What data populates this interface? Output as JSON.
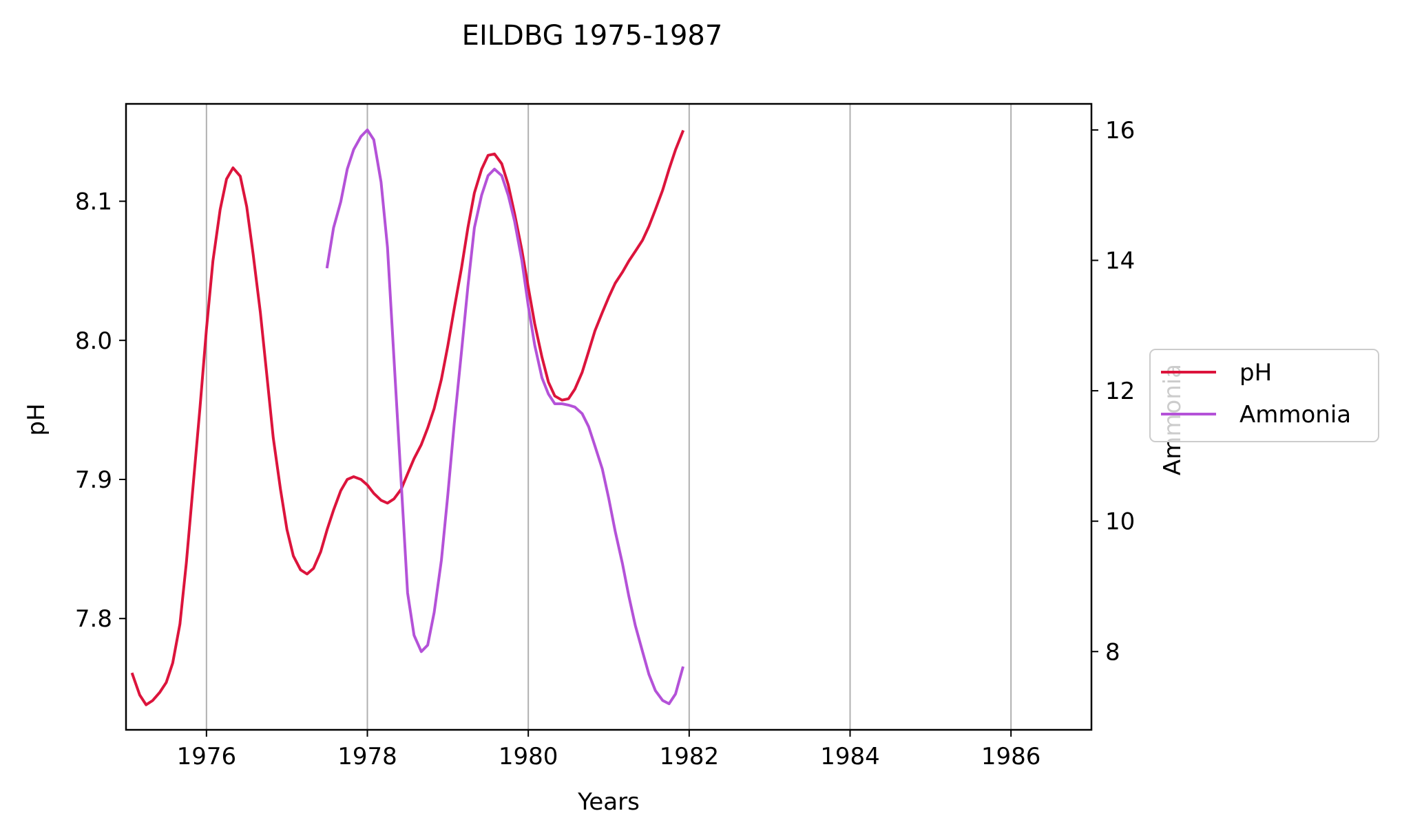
{
  "chart_data": {
    "type": "line",
    "title": "EILDBG 1975-1987",
    "xlabel": "Years",
    "ylabel_left": "pH",
    "ylabel_right": "Ammonia",
    "xlim": [
      1975.0,
      1987.0
    ],
    "ylim_left": [
      7.72,
      8.17
    ],
    "ylim_right": [
      6.8,
      16.4
    ],
    "x_ticks": [
      1976,
      1978,
      1980,
      1982,
      1984,
      1986
    ],
    "y_ticks_left": [
      7.8,
      7.9,
      8.0,
      8.1
    ],
    "y_ticks_right": [
      8,
      10,
      12,
      14,
      16
    ],
    "grid": "vertical",
    "legend_position": "center-right",
    "series": [
      {
        "name": "pH",
        "axis": "left",
        "color": "#dc143c",
        "x": [
          1975.08,
          1975.17,
          1975.25,
          1975.33,
          1975.42,
          1975.5,
          1975.58,
          1975.67,
          1975.75,
          1975.83,
          1975.92,
          1976.0,
          1976.08,
          1976.17,
          1976.25,
          1976.33,
          1976.42,
          1976.5,
          1976.58,
          1976.67,
          1976.75,
          1976.83,
          1976.92,
          1977.0,
          1977.08,
          1977.17,
          1977.25,
          1977.33,
          1977.42,
          1977.5,
          1977.58,
          1977.67,
          1977.75,
          1977.83,
          1977.92,
          1978.0,
          1978.08,
          1978.17,
          1978.25,
          1978.33,
          1978.42,
          1978.5,
          1978.58,
          1978.67,
          1978.75,
          1978.83,
          1978.92,
          1979.0,
          1979.08,
          1979.17,
          1979.25,
          1979.33,
          1979.42,
          1979.5,
          1979.58,
          1979.67,
          1979.75,
          1979.83,
          1979.92,
          1980.0,
          1980.08,
          1980.17,
          1980.25,
          1980.33,
          1980.42,
          1980.5,
          1980.58,
          1980.67,
          1980.75,
          1980.83,
          1980.92,
          1981.0,
          1981.08,
          1981.17,
          1981.25,
          1981.33,
          1981.42,
          1981.5,
          1981.58,
          1981.67,
          1981.75,
          1981.83,
          1981.92
        ],
        "values": [
          7.76,
          7.745,
          7.738,
          7.741,
          7.747,
          7.754,
          7.768,
          7.796,
          7.84,
          7.893,
          7.952,
          8.008,
          8.057,
          8.094,
          8.116,
          8.124,
          8.118,
          8.096,
          8.062,
          8.02,
          7.975,
          7.93,
          7.893,
          7.864,
          7.845,
          7.835,
          7.832,
          7.836,
          7.848,
          7.864,
          7.878,
          7.892,
          7.9,
          7.902,
          7.9,
          7.896,
          7.89,
          7.885,
          7.883,
          7.886,
          7.893,
          7.904,
          7.915,
          7.925,
          7.937,
          7.951,
          7.972,
          7.996,
          8.023,
          8.052,
          8.081,
          8.106,
          8.123,
          8.133,
          8.134,
          8.127,
          8.112,
          8.091,
          8.065,
          8.038,
          8.012,
          7.988,
          7.97,
          7.96,
          7.957,
          7.958,
          7.965,
          7.977,
          7.992,
          8.007,
          8.02,
          8.031,
          8.041,
          8.049,
          8.057,
          8.064,
          8.072,
          8.082,
          8.094,
          8.108,
          8.123,
          8.137,
          8.15
        ]
      },
      {
        "name": "Ammonia",
        "axis": "right",
        "color": "#b452d8",
        "x": [
          1977.5,
          1977.58,
          1977.67,
          1977.75,
          1977.83,
          1977.92,
          1978.0,
          1978.08,
          1978.17,
          1978.25,
          1978.33,
          1978.42,
          1978.5,
          1978.58,
          1978.67,
          1978.75,
          1978.83,
          1978.92,
          1979.0,
          1979.08,
          1979.17,
          1979.25,
          1979.33,
          1979.42,
          1979.5,
          1979.58,
          1979.67,
          1979.75,
          1979.83,
          1979.92,
          1980.0,
          1980.08,
          1980.17,
          1980.25,
          1980.33,
          1980.42,
          1980.5,
          1980.58,
          1980.67,
          1980.75,
          1980.83,
          1980.92,
          1981.0,
          1981.08,
          1981.17,
          1981.25,
          1981.33,
          1981.42,
          1981.5,
          1981.58,
          1981.67,
          1981.75,
          1981.83,
          1981.92
        ],
        "values": [
          13.9,
          14.5,
          14.9,
          15.4,
          15.7,
          15.9,
          16.0,
          15.85,
          15.2,
          14.2,
          12.5,
          10.6,
          8.9,
          8.25,
          8.0,
          8.1,
          8.6,
          9.4,
          10.4,
          11.5,
          12.6,
          13.6,
          14.5,
          15.0,
          15.3,
          15.4,
          15.3,
          15.0,
          14.6,
          14.0,
          13.3,
          12.7,
          12.2,
          11.95,
          11.8,
          11.8,
          11.78,
          11.75,
          11.65,
          11.45,
          11.15,
          10.8,
          10.35,
          9.85,
          9.35,
          8.85,
          8.4,
          8.0,
          7.65,
          7.4,
          7.25,
          7.2,
          7.35,
          7.75
        ]
      }
    ]
  }
}
